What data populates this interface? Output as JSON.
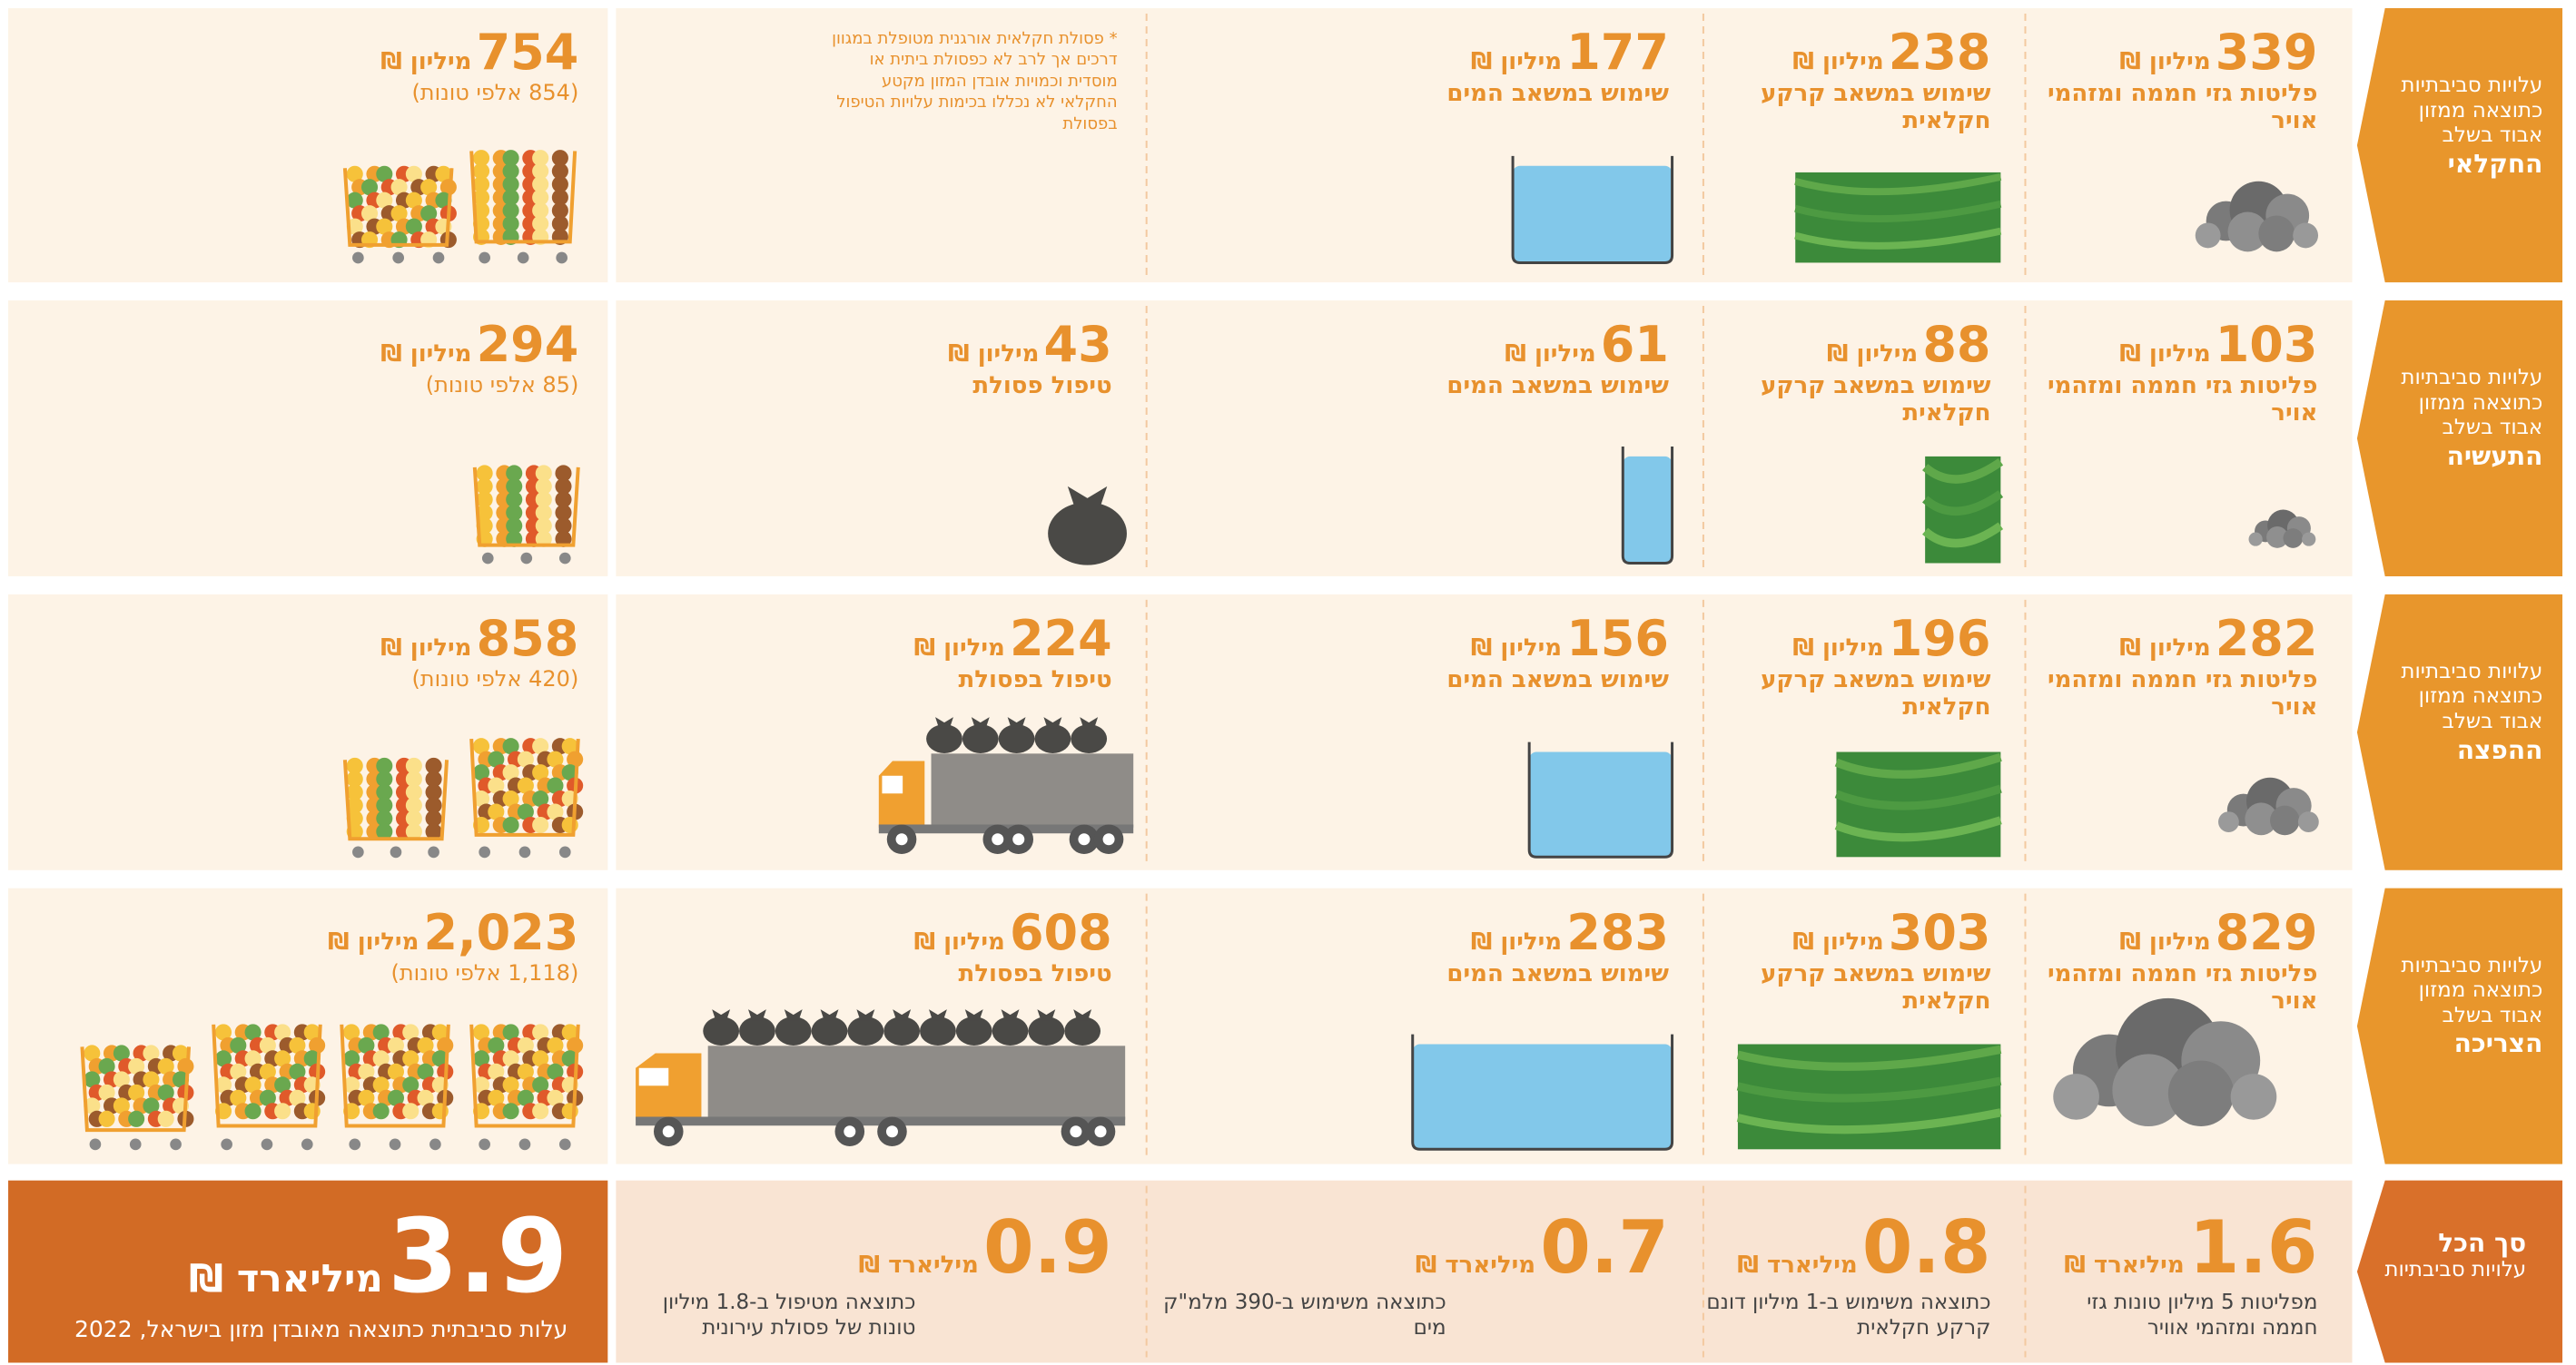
{
  "rows": [
    {
      "stage_label": "עלויות סביבתיות כתוצאה ממזון אבוד בשלב",
      "stage": "החקלאי",
      "gases": {
        "value": "339",
        "unit": "מיליון ₪",
        "label": "פליטות גזי חממה ומזהמי אויר"
      },
      "land": {
        "value": "238",
        "unit": "מיליון ₪",
        "label": "שימוש במשאב קרקע חקלאית"
      },
      "water": {
        "value": "177",
        "unit": "מיליון ₪",
        "label": "שימוש במשאב המים"
      },
      "note": {
        "mark": "*",
        "text": "פסולת חקלאית אורגנית מטופלת במגוון דרכים אך לרב לא כפסולת ביתית או מוסדית וכמויות אובדן המזון מקטע החקלאי לא נכללו בכימות עלויות הטיפול בפסולת"
      },
      "total": {
        "value": "754",
        "unit": "מיליון ₪",
        "tons": "(854 אלפי טונות)"
      }
    },
    {
      "stage_label": "עלויות סביבתיות כתוצאה ממזון אבוד בשלב",
      "stage": "התעשיה",
      "gases": {
        "value": "103",
        "unit": "מיליון ₪",
        "label": "פליטות גזי חממה ומזהמי אויר"
      },
      "land": {
        "value": "88",
        "unit": "מיליון ₪",
        "label": "שימוש במשאב קרקע חקלאית"
      },
      "water": {
        "value": "61",
        "unit": "מיליון ₪",
        "label": "שימוש במשאב המים"
      },
      "waste": {
        "value": "43",
        "unit": "מיליון ₪",
        "label": "טיפול פסולת"
      },
      "total": {
        "value": "294",
        "unit": "מיליון ₪",
        "tons": "(85 אלפי טונות)"
      }
    },
    {
      "stage_label": "עלויות סביבתיות כתוצאה ממזון אבוד בשלב",
      "stage": "ההפצה",
      "gases": {
        "value": "282",
        "unit": "מיליון ₪",
        "label": "פליטות גזי חממה ומזהמי אויר"
      },
      "land": {
        "value": "196",
        "unit": "מיליון ₪",
        "label": "שימוש במשאב קרקע חקלאית"
      },
      "water": {
        "value": "156",
        "unit": "מיליון ₪",
        "label": "שימוש במשאב המים"
      },
      "waste": {
        "value": "224",
        "unit": "מיליון ₪",
        "label": "טיפול בפסולת"
      },
      "total": {
        "value": "858",
        "unit": "מיליון ₪",
        "tons": "(420 אלפי טונות)"
      }
    },
    {
      "stage_label": "עלויות סביבתיות כתוצאה ממזון אבוד בשלב",
      "stage": "הצריכה",
      "gases": {
        "value": "829",
        "unit": "מיליון ₪",
        "label": "פליטות גזי חממה ומזהמי אויר"
      },
      "land": {
        "value": "303",
        "unit": "מיליון ₪",
        "label": "שימוש במשאב קרקע חקלאית"
      },
      "water": {
        "value": "283",
        "unit": "מיליון ₪",
        "label": "שימוש במשאב המים"
      },
      "waste": {
        "value": "608",
        "unit": "מיליון ₪",
        "label": "טיפול בפסולת"
      },
      "total": {
        "value": "2,023",
        "unit": "מיליון ₪",
        "tons": "(1,118 אלפי טונות)"
      }
    }
  ],
  "summary": {
    "title": "סך הכל",
    "subtitle": "עלויות סביבתיות",
    "gases": {
      "value": "1.6",
      "unit": "מיליארד ₪",
      "label": "מפליטות 5 מיליון טונות גזי חממה ומזהמי אוויר"
    },
    "land": {
      "value": "0.8",
      "unit": "מיליארד ₪",
      "label": "כתוצאה משימוש ב-1 מיליון דונם קרקע חקלאית"
    },
    "water": {
      "value": "0.7",
      "unit": "מיליארד ₪",
      "label": "כתוצאה משימוש ב-390 מלמ\"ק מים"
    },
    "waste": {
      "value": "0.9",
      "unit": "מיליארד ₪",
      "label": "כתוצאה מטיפול ב-1.8 מיליון טונות של פסולת עירונית"
    },
    "total": {
      "value": "3.9",
      "unit": "מיליארד ₪",
      "label": "עלות סביבתית כתוצאה מאובדן מזון בישראל, 2022"
    }
  }
}
